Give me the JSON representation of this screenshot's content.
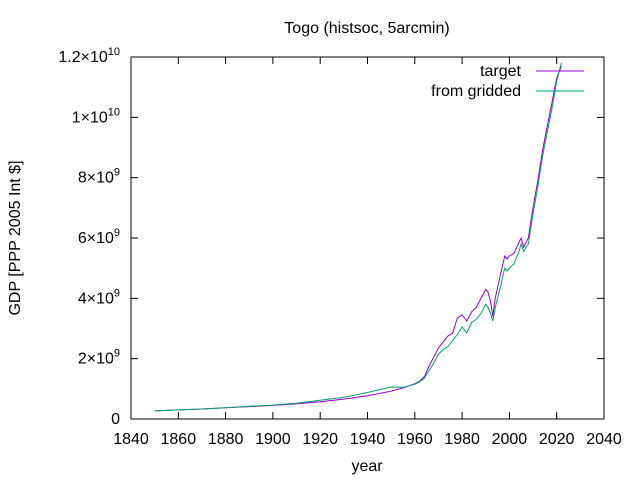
{
  "chart_data": {
    "type": "line",
    "title": "Togo (histsoc, 5arcmin)",
    "xlabel": "year",
    "ylabel": "GDP [PPP 2005 Int $]",
    "xlim": [
      1840,
      2040
    ],
    "ylim": [
      0,
      12000000000
    ],
    "xticks": [
      1840,
      1860,
      1880,
      1900,
      1920,
      1940,
      1960,
      1980,
      2000,
      2020,
      2040
    ],
    "xtick_labels": [
      "1840",
      "1860",
      "1880",
      "1900",
      "1920",
      "1940",
      "1960",
      "1980",
      "2000",
      "2020",
      "2040"
    ],
    "yticks": [
      {
        "value": 0,
        "mantissa": "0",
        "exp": ""
      },
      {
        "value": 2000000000,
        "mantissa": "2×10",
        "exp": "9"
      },
      {
        "value": 4000000000,
        "mantissa": "4×10",
        "exp": "9"
      },
      {
        "value": 6000000000,
        "mantissa": "6×10",
        "exp": "9"
      },
      {
        "value": 8000000000,
        "mantissa": "8×10",
        "exp": "9"
      },
      {
        "value": 10000000000,
        "mantissa": "1×10",
        "exp": "10"
      },
      {
        "value": 12000000000,
        "mantissa": "1.2×10",
        "exp": "10"
      }
    ],
    "grid": false,
    "legend_position": "top-right",
    "series": [
      {
        "name": "target",
        "color": "#9400d3",
        "x": [
          1850,
          1860,
          1870,
          1880,
          1890,
          1900,
          1910,
          1920,
          1930,
          1940,
          1950,
          1955,
          1960,
          1962,
          1964,
          1966,
          1968,
          1970,
          1972,
          1974,
          1976,
          1978,
          1980,
          1982,
          1984,
          1986,
          1988,
          1990,
          1991,
          1992,
          1993,
          1994,
          1996,
          1998,
          1999,
          2000,
          2002,
          2004,
          2005,
          2006,
          2008,
          2010,
          2012,
          2014,
          2016,
          2018,
          2020,
          2022
        ],
        "y": [
          270000000,
          300000000,
          330000000,
          370000000,
          410000000,
          450000000,
          500000000,
          570000000,
          660000000,
          770000000,
          920000000,
          1030000000,
          1170000000,
          1250000000,
          1400000000,
          1750000000,
          2050000000,
          2350000000,
          2550000000,
          2750000000,
          2850000000,
          3350000000,
          3450000000,
          3250000000,
          3550000000,
          3700000000,
          4000000000,
          4300000000,
          4200000000,
          3900000000,
          3400000000,
          4000000000,
          4700000000,
          5400000000,
          5300000000,
          5400000000,
          5500000000,
          5850000000,
          6000000000,
          5700000000,
          6000000000,
          7000000000,
          7900000000,
          8900000000,
          9700000000,
          10500000000,
          11300000000,
          11700000000
        ]
      },
      {
        "name": "from gridded",
        "color": "#009e73",
        "x": [
          1850,
          1860,
          1870,
          1880,
          1890,
          1900,
          1910,
          1920,
          1930,
          1940,
          1950,
          1955,
          1960,
          1962,
          1964,
          1966,
          1968,
          1970,
          1972,
          1974,
          1976,
          1978,
          1980,
          1982,
          1984,
          1986,
          1988,
          1990,
          1991,
          1992,
          1993,
          1994,
          1996,
          1998,
          1999,
          2000,
          2002,
          2004,
          2005,
          2006,
          2008,
          2010,
          2012,
          2014,
          2016,
          2018,
          2020,
          2022
        ],
        "y": [
          270000000,
          300000000,
          330000000,
          370000000,
          420000000,
          460000000,
          520000000,
          620000000,
          720000000,
          880000000,
          1060000000,
          1050000000,
          1150000000,
          1230000000,
          1350000000,
          1600000000,
          1850000000,
          2150000000,
          2300000000,
          2400000000,
          2600000000,
          2800000000,
          3050000000,
          2850000000,
          3200000000,
          3300000000,
          3500000000,
          3800000000,
          3700000000,
          3500000000,
          3250000000,
          3700000000,
          4300000000,
          5000000000,
          4900000000,
          5000000000,
          5150000000,
          5550000000,
          5800000000,
          5550000000,
          5800000000,
          6800000000,
          7700000000,
          8700000000,
          9500000000,
          10300000000,
          11200000000,
          11800000000
        ]
      }
    ]
  }
}
